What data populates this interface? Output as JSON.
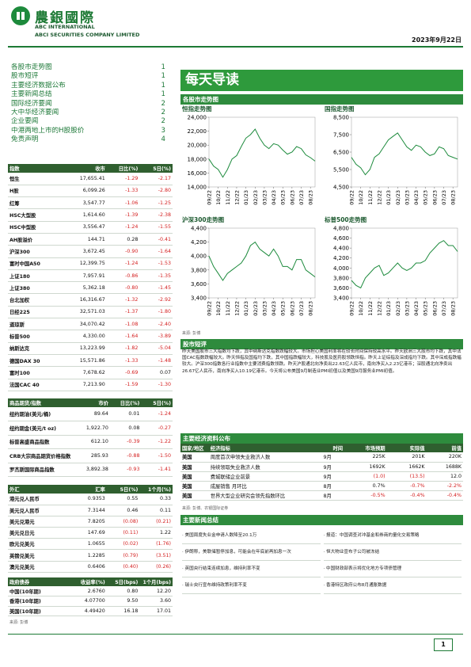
{
  "header": {
    "company_cn": "農銀國際",
    "company_en1": "ABC INTERNATIONAL",
    "company_en2": "ABCI SECURITIES COMPANY LIMITED",
    "date": "2023年9月22日"
  },
  "toc": [
    {
      "label": "各股市走势图",
      "page": "1"
    },
    {
      "label": "股市短评",
      "page": "1"
    },
    {
      "label": "主要经济数据公布",
      "page": "1"
    },
    {
      "label": "主要新闻总结",
      "page": "1"
    },
    {
      "label": "国际经济要闻",
      "page": "2"
    },
    {
      "label": "大中华经济要闻",
      "page": "2"
    },
    {
      "label": "企业要闻",
      "page": "2"
    },
    {
      "label": "中港两地上市的H股股价",
      "page": "3"
    },
    {
      "label": "免责声明",
      "page": "4"
    }
  ],
  "banner": "每天导读",
  "charts_section": "各股市走势图",
  "charts": [
    {
      "type": "line",
      "title": "恒指走势图",
      "color": "#1c8a3c",
      "categories": [
        "09/22",
        null,
        "10/22",
        null,
        "11/22",
        null,
        "12/22",
        null,
        "01/23",
        null,
        "02/23",
        null,
        "03/23",
        null,
        "04/23",
        null,
        "05/23",
        null,
        "06/23",
        null,
        "07/23",
        null,
        "08/23",
        null
      ],
      "values": [
        18000,
        17000,
        16500,
        15400,
        16500,
        18000,
        18500,
        19800,
        21000,
        21500,
        22300,
        21000,
        20000,
        19500,
        20200,
        20000,
        19300,
        18700,
        19000,
        19800,
        19500,
        18600,
        18200,
        17700
      ],
      "ylim": [
        14000,
        24000
      ],
      "yticks": [
        {
          "value": 14000,
          "label": "14,000"
        },
        {
          "value": 16000,
          "label": "16,000"
        },
        {
          "value": 18000,
          "label": "18,000"
        },
        {
          "value": 20000,
          "label": "20,000"
        },
        {
          "value": 22000,
          "label": "22,000"
        },
        {
          "value": 24000,
          "label": "24,000"
        }
      ]
    },
    {
      "type": "line",
      "title": "国指走势图",
      "color": "#1c8a3c",
      "categories": [
        "09/22",
        null,
        "10/22",
        null,
        "11/22",
        null,
        "12/22",
        null,
        "01/23",
        null,
        "02/23",
        null,
        "03/23",
        null,
        "04/23",
        null,
        "05/23",
        null,
        "06/23",
        null,
        "07/23",
        null,
        "08/23",
        null
      ],
      "values": [
        6200,
        5800,
        5600,
        5200,
        5500,
        6200,
        6400,
        6800,
        7200,
        7400,
        7600,
        7200,
        6800,
        6600,
        6900,
        6800,
        6500,
        6300,
        6400,
        6800,
        6700,
        6300,
        6200,
        6100
      ],
      "ylim": [
        4500,
        8500
      ],
      "yticks": [
        {
          "value": 4500,
          "label": "4,500"
        },
        {
          "value": 5500,
          "label": "5,500"
        },
        {
          "value": 6500,
          "label": "6,500"
        },
        {
          "value": 7500,
          "label": "7,500"
        },
        {
          "value": 8500,
          "label": "8,500"
        }
      ]
    },
    {
      "type": "line",
      "title": "沪深300走势图",
      "color": "#1c8a3c",
      "categories": [
        "09/22",
        null,
        "10/22",
        null,
        "11/22",
        null,
        "12/22",
        null,
        "01/23",
        null,
        "02/23",
        null,
        "03/23",
        null,
        "04/23",
        null,
        "05/23",
        null,
        "06/23",
        null,
        "07/23",
        null,
        "08/23",
        null
      ],
      "values": [
        4000,
        3850,
        3750,
        3650,
        3750,
        3800,
        3850,
        3900,
        4000,
        4150,
        4200,
        4100,
        4050,
        4000,
        4100,
        4000,
        3850,
        3850,
        3800,
        3950,
        3950,
        3800,
        3750,
        3700
      ],
      "ylim": [
        3400,
        4400
      ],
      "yticks": [
        {
          "value": 3400,
          "label": "3,400"
        },
        {
          "value": 3600,
          "label": "3,600"
        },
        {
          "value": 3800,
          "label": "3,800"
        },
        {
          "value": 4000,
          "label": "4,000"
        },
        {
          "value": 4200,
          "label": "4,200"
        },
        {
          "value": 4400,
          "label": "4,400"
        }
      ]
    },
    {
      "type": "line",
      "title": "标普500走势图",
      "color": "#1c8a3c",
      "categories": [
        "09/22",
        null,
        "10/22",
        null,
        "11/22",
        null,
        "12/22",
        null,
        "01/23",
        null,
        "02/23",
        null,
        "03/23",
        null,
        "04/23",
        null,
        "05/23",
        null,
        "06/23",
        null,
        "07/23",
        null,
        "08/23",
        null
      ],
      "values": [
        3750,
        3650,
        3600,
        3800,
        3900,
        4000,
        4050,
        3850,
        3900,
        4000,
        4100,
        4000,
        3950,
        4000,
        4100,
        4100,
        4150,
        4300,
        4400,
        4500,
        4550,
        4450,
        4450,
        4330
      ],
      "ylim": [
        3400,
        4800
      ],
      "yticks": [
        {
          "value": 3400,
          "label": "3,400"
        },
        {
          "value": 3600,
          "label": "3,600"
        },
        {
          "value": 3800,
          "label": "3,800"
        },
        {
          "value": 4000,
          "label": "4,000"
        },
        {
          "value": 4200,
          "label": "4,200"
        },
        {
          "value": 4400,
          "label": "4,400"
        },
        {
          "value": 4600,
          "label": "4,600"
        },
        {
          "value": 4800,
          "label": "4,800"
        }
      ]
    }
  ],
  "charts_source": "来源: 彭博",
  "commentary": {
    "title": "股市短评",
    "text": "昨天美国股市三大指数均下跌，其中纳斯达克指数跌幅较大。市场担心美国利率将在较长时间保持较高水平。昨天欧洲三大股市均下跌，其中法国CAC指数跌幅较大。昨天恒指及国指均下跌，其中国指跌幅较大，科技股及医药股领跌恒指。昨天上证综指及深成指均下跌。其中深成指跌幅较大。沪深300指数各行业指数中主要消费指数领跌。昨天沪股通北向净卖出22.63亿人民币，南向净买入2.23亿港币；深股通北向净卖出26.67亿人民币，南向净买入10.19亿港币。今天将公布美国9月制造业PMI初值以及美国9月服务业PMI初值。"
  },
  "index_table": {
    "columns": [
      "指数",
      "收市",
      "日比(%)",
      "5日(%)"
    ],
    "rows": [
      [
        "恒生",
        "17,655.41",
        "-1.29",
        "-2.17"
      ],
      [
        "H股",
        "6,099.26",
        "-1.33",
        "-2.80"
      ],
      [
        "红筹",
        "3,547.77",
        "-1.06",
        "-1.25"
      ],
      [
        "HSC大型股",
        "1,614.60",
        "-1.39",
        "-2.38"
      ],
      [
        "HSC中型股",
        "3,556.47",
        "-1.24",
        "-1.55"
      ],
      [
        "AH股溢价",
        "144.71",
        "0.28",
        "-0.41"
      ],
      [
        "沪深300",
        "3,672.45",
        "-0.90",
        "-1.64"
      ],
      [
        "富时中国A50",
        "12,399.75",
        "-1.24",
        "-1.53"
      ],
      [
        "上证180",
        "7,957.91",
        "-0.86",
        "-1.35"
      ],
      [
        "上证380",
        "5,362.18",
        "-0.80",
        "-1.45"
      ],
      [
        "台北加权",
        "16,316.67",
        "-1.32",
        "-2.92"
      ],
      [
        "日经225",
        "32,571.03",
        "-1.37",
        "-1.80"
      ],
      [
        "道琼斯",
        "34,070.42",
        "-1.08",
        "-2.40"
      ],
      [
        "标普500",
        "4,330.00",
        "-1.64",
        "-3.89"
      ],
      [
        "纳斯达克",
        "13,223.99",
        "-1.82",
        "-5.04"
      ],
      [
        "德国DAX 30",
        "15,571.86",
        "-1.33",
        "-1.48"
      ],
      [
        "富时100",
        "7,678.62",
        "-0.69",
        "0.07"
      ],
      [
        "法国CAC 40",
        "7,213.90",
        "-1.59",
        "-1.30"
      ]
    ]
  },
  "commodity_table": {
    "columns": [
      "商品期货/指数",
      "市价",
      "日比(%)",
      "5日(%)"
    ],
    "rows": [
      [
        "纽约期油(美元/桶)",
        "89.64",
        "0.01",
        "-1.24"
      ],
      [
        "纽约期金(美元/t oz)",
        "1,922.70",
        "0.08",
        "-0.27"
      ],
      [
        "标普高盛商品指数",
        "612.10",
        "-0.39",
        "-1.22"
      ],
      [
        "CRB大宗商品期货价格指数",
        "285.93",
        "-0.88",
        "-1.50"
      ],
      [
        "罗杰斯国际商品指数",
        "3,892.38",
        "-0.93",
        "-1.41"
      ]
    ]
  },
  "fx_table": {
    "columns": [
      "外汇",
      "汇率",
      "5日(%)",
      "1个月(%)"
    ],
    "rows": [
      [
        "港元兑人民币",
        "0.9353",
        "0.55",
        "0.33"
      ],
      [
        "美元兑人民币",
        "7.3144",
        "0.46",
        "0.11"
      ],
      [
        "美元兑港元",
        "7.8205",
        "(0.08)",
        "(0.21)"
      ],
      [
        "美元兑日元",
        "147.69",
        "(0.11)",
        "1.22"
      ],
      [
        "欧元兑美元",
        "1.0655",
        "(0.02)",
        "(1.76)"
      ],
      [
        "英镑兑美元",
        "1.2285",
        "(0.79)",
        "(3.51)"
      ],
      [
        "澳元兑美元",
        "0.6406",
        "(0.40)",
        "(0.26)"
      ]
    ]
  },
  "bond_table": {
    "columns": [
      "政府债券",
      "收益率(%)",
      "5日(bps)",
      "1个月(bps)"
    ],
    "rows": [
      [
        "中国(10年期)",
        "2.6760",
        "0.80",
        "12.20"
      ],
      [
        "香港(10年期)",
        "4.07700",
        "9.50",
        "3.60"
      ],
      [
        "美国(10年期)",
        "4.49420",
        "16.18",
        "17.01"
      ]
    ]
  },
  "left_source": "来源: 彭博",
  "econ": {
    "title": "主要经济资料公布",
    "columns": [
      "国家/地区",
      "经济指标",
      "时间",
      "市场预期",
      "实际值",
      "前值"
    ],
    "rows": [
      [
        "美国",
        "周度首次申领失业救济人数",
        "9月",
        "225K",
        "201K",
        "220K"
      ],
      [
        "美国",
        "持续领取失业救济人数",
        "9月",
        "1692K",
        "1662K",
        "1688K"
      ],
      [
        "美国",
        "费城联储企业前景",
        "9月",
        "(1.0)",
        "(13.5)",
        "12.0"
      ],
      [
        "美国",
        "成屋销售 月环比",
        "8月",
        "0.7%",
        "-0.7%",
        "-2.2%"
      ],
      [
        "美国",
        "世界大型企业研究会领先指数环比",
        "8月",
        "-0.5%",
        "-0.4%",
        "-0.4%"
      ]
    ],
    "source": "来源: 彭博、农银国际证券"
  },
  "news": {
    "title": "主要新闻总结",
    "items": [
      "· 美国周度失业金申请人数降至20.1万",
      "· 报道：中国调查对冲基金和券商的量化交易策略",
      "· 伊朗称，美联储暂停加息，可能会在年底前再加息一次",
      "· 恒大物业宣布子公司被冻结",
      "· 英国央行结束连续加息，维持利率不变",
      "· 中国财政部表示将优化地方专项债管理",
      "· 瑞士央行宣布维持政策利率不变",
      "· 香港特区政府公布8月通胀数据"
    ]
  },
  "page_number": "1"
}
